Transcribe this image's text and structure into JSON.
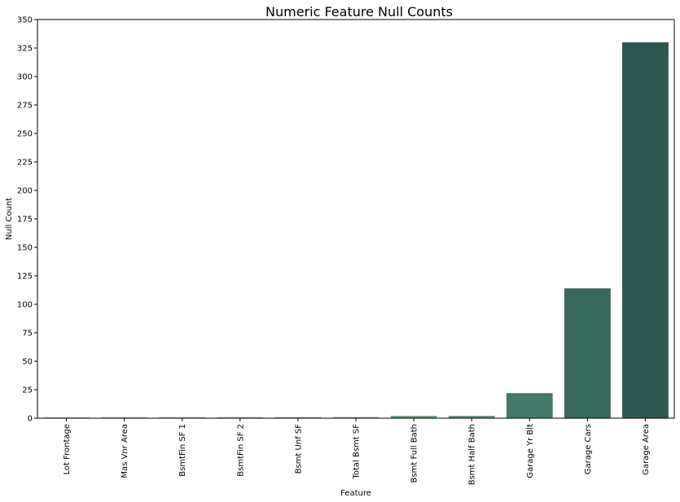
{
  "chart_data": {
    "type": "bar",
    "title": "Numeric Feature Null Counts",
    "xlabel": "Feature",
    "ylabel": "Null Count",
    "ylim": [
      0,
      350
    ],
    "yticks": [
      0,
      25,
      50,
      75,
      100,
      125,
      150,
      175,
      200,
      225,
      250,
      275,
      300,
      325,
      350
    ],
    "grid": false,
    "categories": [
      "Lot Frontage",
      "Mas Vnr Area",
      "BsmtFin SF 1",
      "BsmtFin SF 2",
      "Bsmt Unf SF",
      "Total Bsmt SF",
      "Bsmt Full Bath",
      "Bsmt Half Bath",
      "Garage Yr Blt",
      "Garage Cars",
      "Garage Area"
    ],
    "values": [
      1,
      1,
      1,
      1,
      1,
      1,
      2,
      2,
      22,
      114,
      330
    ],
    "colors": [
      "#a4d9a4",
      "#9bcf9e",
      "#91c597",
      "#87bb90",
      "#7db189",
      "#73a782",
      "#679b7b",
      "#5c8f73",
      "#45796a",
      "#39685c",
      "#2d5850"
    ]
  }
}
